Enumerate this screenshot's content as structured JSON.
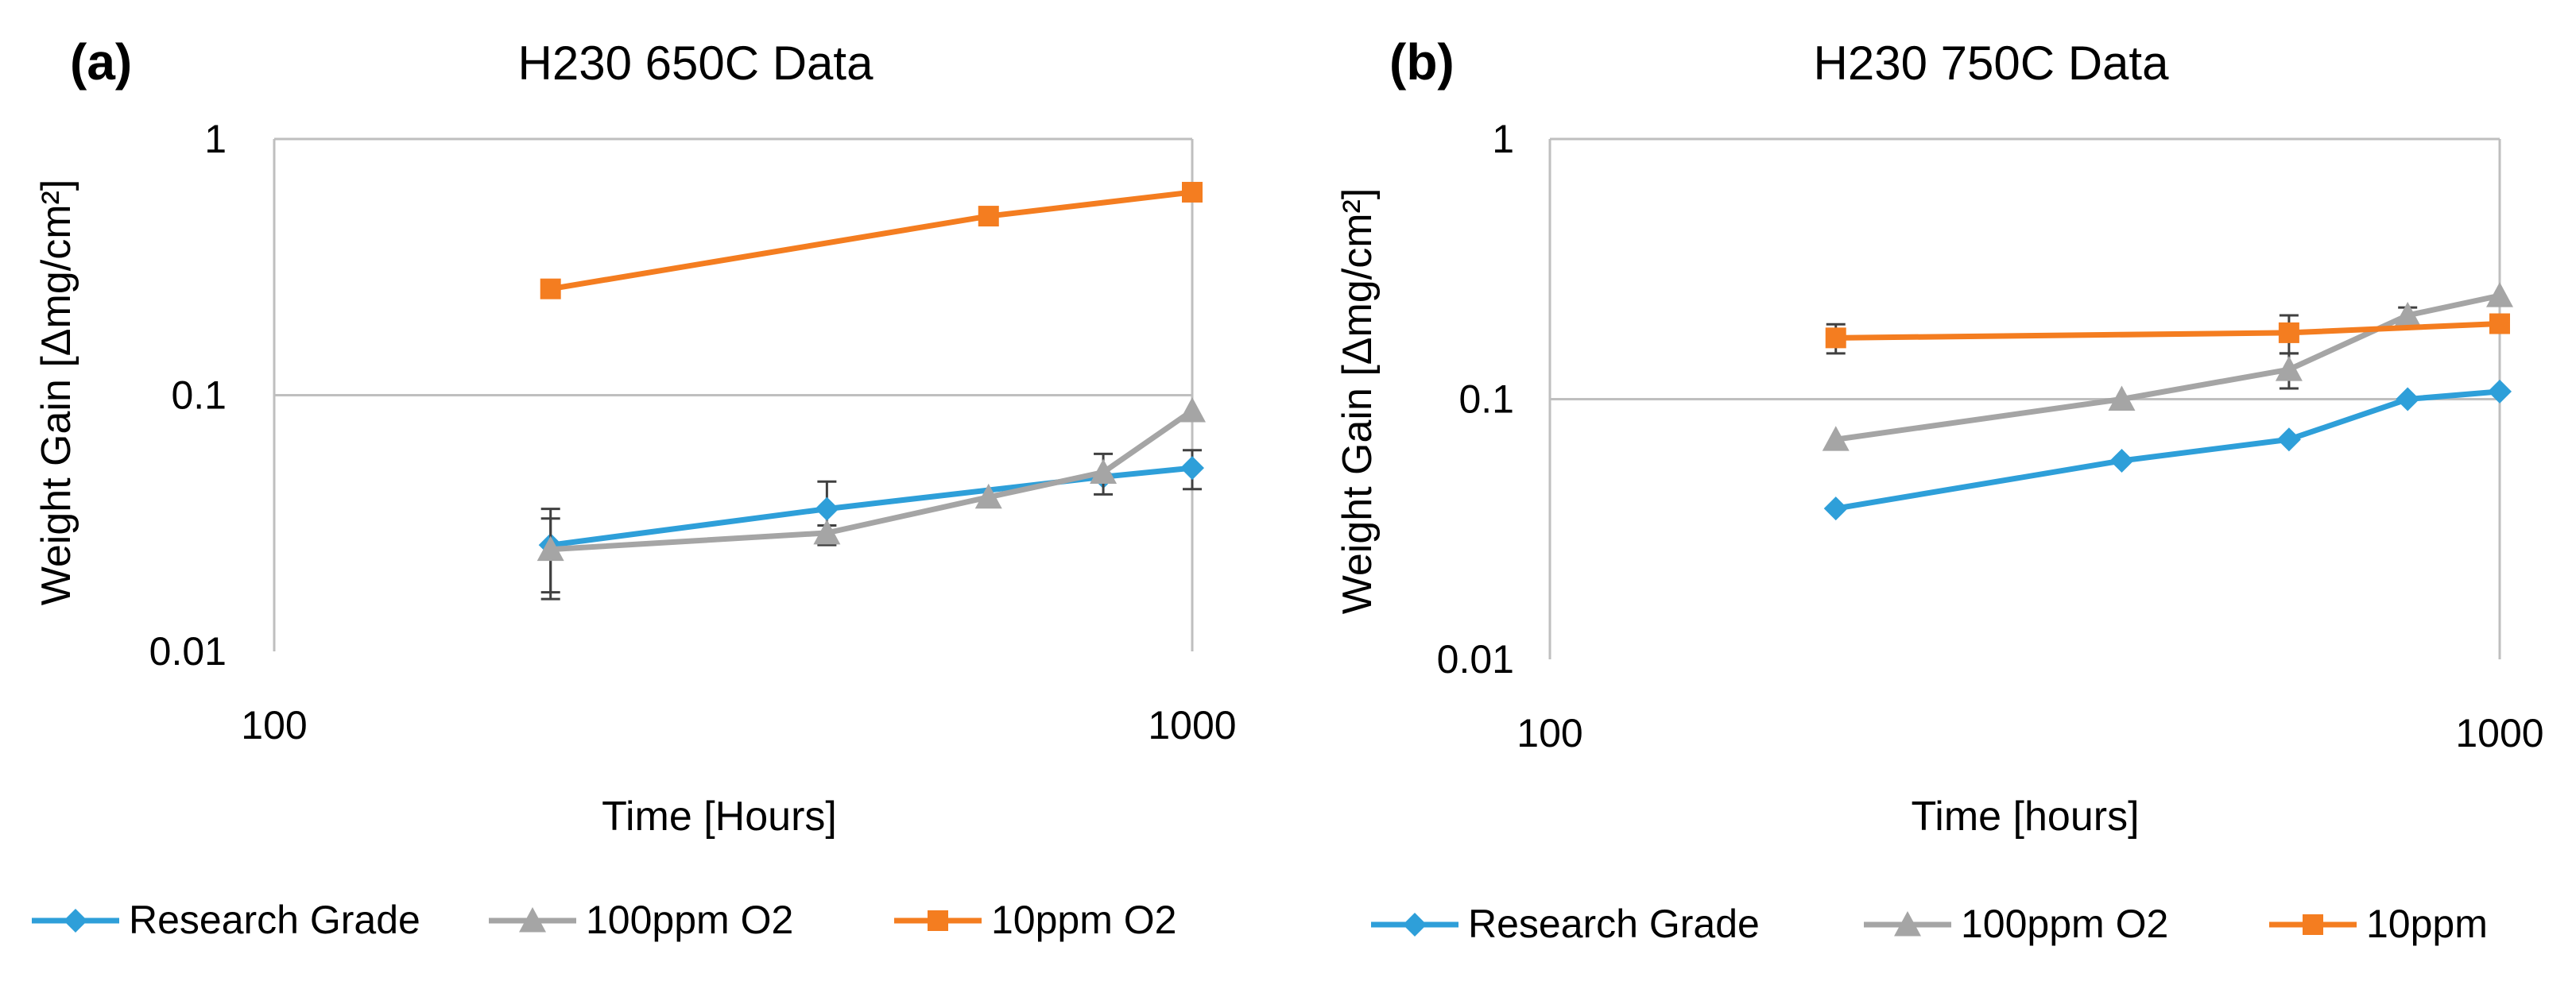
{
  "chart_data": [
    {
      "type": "line",
      "panel_label": "(a)",
      "title": "H230 650C Data",
      "xlabel": "Time [Hours]",
      "ylabel": "Weight Gain [Δmg/cm²]",
      "xscale": "log",
      "yscale": "log",
      "xlim": [
        100,
        1000
      ],
      "ylim": [
        0.01,
        1
      ],
      "x_tick_labels": [
        "100",
        "1000"
      ],
      "y_tick_labels": [
        "0.01",
        "0.1",
        "1"
      ],
      "grid": "horizontal",
      "legend_position": "bottom",
      "series": [
        {
          "name": "Research Grade",
          "color": "#2e9fd9",
          "marker": "diamond",
          "x": [
            200,
            400,
            800,
            1000
          ],
          "values": [
            0.026,
            0.036,
            0.048,
            0.052
          ],
          "err": [
            0.01,
            0.01,
            0,
            0.009
          ]
        },
        {
          "name": "100ppm O2",
          "color": "#a5a5a5",
          "marker": "triangle",
          "x": [
            200,
            400,
            600,
            800,
            1000
          ],
          "values": [
            0.025,
            0.029,
            0.04,
            0.05,
            0.087
          ],
          "err": [
            0.008,
            0.002,
            0,
            0.009,
            0
          ]
        },
        {
          "name": "10ppm O2",
          "color": "#f47d20",
          "marker": "square",
          "x": [
            200,
            600,
            1000
          ],
          "values": [
            0.26,
            0.5,
            0.62
          ],
          "err": [
            0,
            0,
            0
          ]
        }
      ]
    },
    {
      "type": "line",
      "panel_label": "(b)",
      "title": "H230 750C Data",
      "xlabel": "Time [hours]",
      "ylabel": "Weight Gain [Δmg/cm²]",
      "xscale": "log",
      "yscale": "log",
      "xlim": [
        100,
        1000
      ],
      "ylim": [
        0.01,
        1
      ],
      "x_tick_labels": [
        "100",
        "1000"
      ],
      "y_tick_labels": [
        "0.01",
        "0.1",
        "1"
      ],
      "grid": "horizontal",
      "legend_position": "bottom",
      "series": [
        {
          "name": "Research Grade",
          "color": "#2e9fd9",
          "marker": "diamond",
          "x": [
            200,
            400,
            600,
            800,
            1000
          ],
          "values": [
            0.038,
            0.058,
            0.07,
            0.1,
            0.107
          ],
          "err": [
            0,
            0,
            0,
            0,
            0
          ]
        },
        {
          "name": "100ppm O2",
          "color": "#a5a5a5",
          "marker": "triangle",
          "x": [
            200,
            400,
            600,
            800,
            1000
          ],
          "values": [
            0.07,
            0.1,
            0.13,
            0.21,
            0.25
          ],
          "err": [
            0,
            0,
            0.02,
            0.015,
            0
          ]
        },
        {
          "name": "10ppm",
          "color": "#f47d20",
          "marker": "square",
          "x": [
            200,
            600,
            1000
          ],
          "values": [
            0.172,
            0.18,
            0.195
          ],
          "err": [
            0.022,
            0.03,
            0
          ]
        }
      ]
    }
  ]
}
